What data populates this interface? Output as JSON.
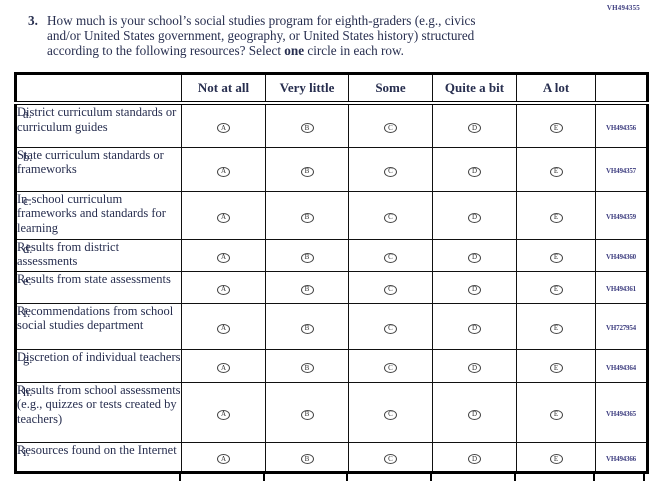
{
  "page": {
    "top_right_code": "VH494355"
  },
  "question": {
    "number": "3.",
    "line1": "How much is your school’s social studies program for eighth-graders (e.g., civics",
    "line2": "and/or United States government, geography, or United States history) structured",
    "line3_pre": "according to the following resources? Select ",
    "line3_bold": "one",
    "line3_post": " circle in each row."
  },
  "table": {
    "columns": [
      "",
      "Not at all",
      "Very little",
      "Some",
      "Quite a bit",
      "A lot",
      ""
    ],
    "option_letters": [
      "A",
      "B",
      "C",
      "D",
      "E"
    ],
    "rows": [
      {
        "letter": "a.",
        "label": "District curriculum standards or curriculum guides",
        "code": "VH494356"
      },
      {
        "letter": "b.",
        "label": "State curriculum standards or frameworks",
        "code": "VH494357"
      },
      {
        "letter": "c.",
        "label": "In-school curriculum frameworks and standards for learning",
        "code": "VH494359"
      },
      {
        "letter": "d.",
        "label": "Results from district assessments",
        "code": "VH494360"
      },
      {
        "letter": "e.",
        "label": "Results from state assessments",
        "code": "VH494361"
      },
      {
        "letter": "f.",
        "label": "Recommendations from school social studies department",
        "code": "VH727954"
      },
      {
        "letter": "g.",
        "label": "Discretion of individual teachers",
        "code": "VH494364"
      },
      {
        "letter": "h.",
        "label": "Results from school assessments (e.g., quizzes or tests created by teachers)",
        "code": "VH494365"
      },
      {
        "letter": "i.",
        "label": "Resources found on the Internet",
        "code": "VH494366"
      }
    ]
  }
}
